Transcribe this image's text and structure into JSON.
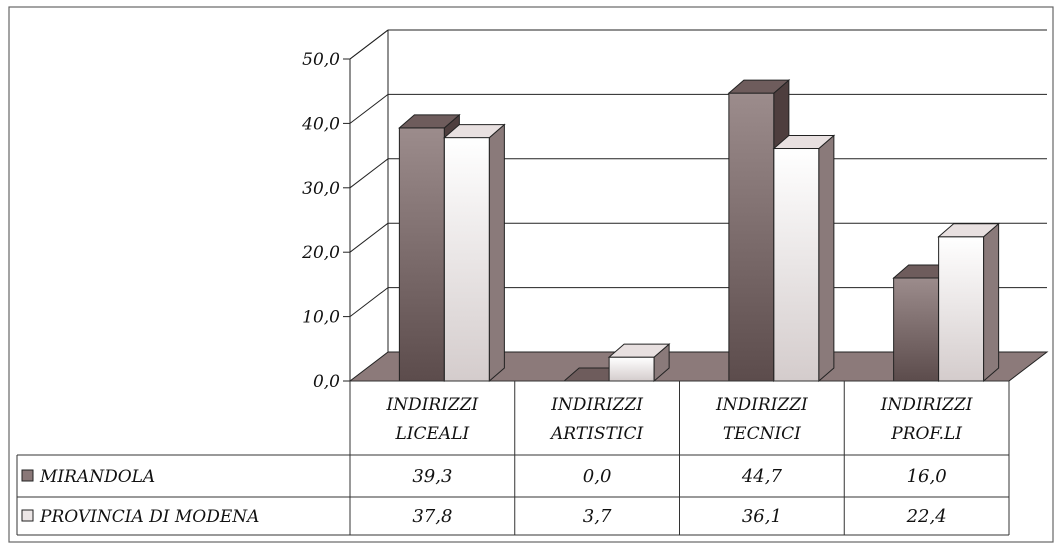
{
  "chart_data": {
    "type": "bar",
    "title": "",
    "xlabel": "",
    "ylabel": "",
    "categories": [
      [
        "INDIRIZZI",
        "LICEALI"
      ],
      [
        "INDIRIZZI",
        "ARTISTICI"
      ],
      [
        "INDIRIZZI",
        "TECNICI"
      ],
      [
        "INDIRIZZI",
        "PROF.LI"
      ]
    ],
    "series": [
      {
        "name": "MIRANDOLA",
        "values": [
          39.3,
          0.0,
          44.7,
          16.0
        ],
        "labels": [
          "39,3",
          "0,0",
          "44,7",
          "16,0"
        ],
        "color": "#8a7878"
      },
      {
        "name": "PROVINCIA DI MODENA",
        "values": [
          37.8,
          3.7,
          36.1,
          22.4
        ],
        "labels": [
          "37,8",
          "3,7",
          "36,1",
          "22,4"
        ],
        "color": "#ece6e6"
      }
    ],
    "ylim": [
      0,
      50
    ],
    "yticks": [
      "0,0",
      "10,0",
      "20,0",
      "30,0",
      "40,0",
      "50,0"
    ],
    "grid": true,
    "legend": "data-table-left",
    "style": "3d-column-with-data-table",
    "floor_color": "#8c7a7a"
  }
}
